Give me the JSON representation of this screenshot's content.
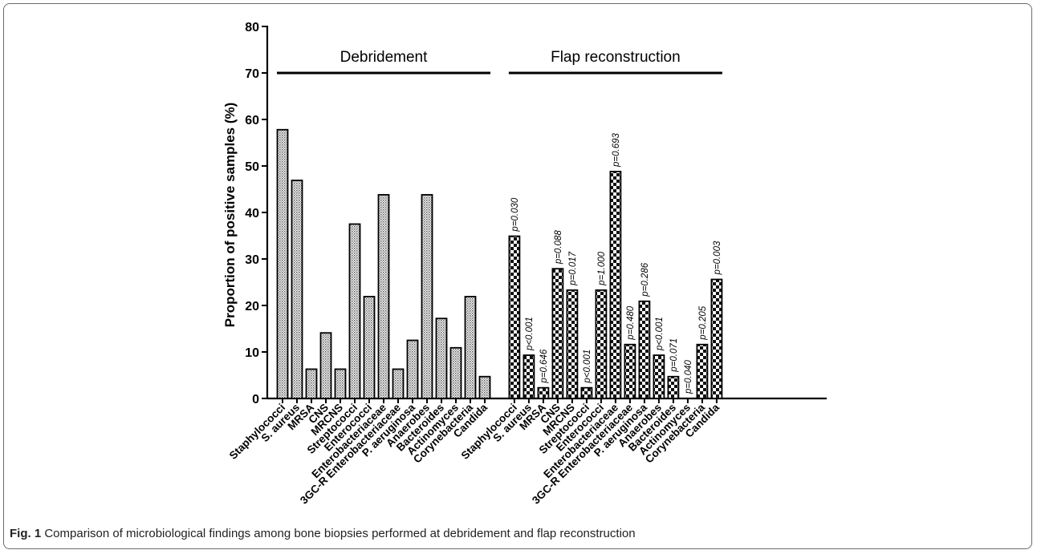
{
  "chart_data": {
    "type": "bar",
    "title": "",
    "xlabel": "",
    "ylabel": "Proportion of positive samples (%)",
    "ylim": [
      0,
      80
    ],
    "yticks": [
      0,
      10,
      20,
      30,
      40,
      50,
      60,
      70,
      80
    ],
    "grid": false,
    "groups": [
      {
        "name": "Debridement",
        "pattern": "fine-crosshatch",
        "categories": [
          "Staphylococci",
          "S. aureus",
          "MRSA",
          "CNS",
          "MRCNS",
          "Streptococci",
          "Enterococci",
          "Enterobacteriaceae",
          "3GC-R Enterobacteriaceae",
          "P. aeruginosa",
          "Anaerobes",
          "Bacteroides",
          "Actinomyces",
          "Corynebacteria",
          "Candida"
        ],
        "values": [
          57.8,
          46.9,
          6.3,
          14.1,
          6.3,
          37.5,
          21.9,
          43.8,
          6.3,
          12.5,
          43.8,
          17.2,
          10.9,
          21.9,
          4.7
        ],
        "annotations": [
          "",
          "",
          "",
          "",
          "",
          "",
          "",
          "",
          "",
          "",
          "",
          "",
          "",
          "",
          ""
        ]
      },
      {
        "name": "Flap reconstruction",
        "pattern": "checkerboard",
        "categories": [
          "Staphylococci",
          "S. aureus",
          "MRSA",
          "CNS",
          "MRCNS",
          "Streptococci",
          "Enterococci",
          "Enterobacteriaceae",
          "3GC-R Enterobacteriaceae",
          "P. aeruginosa",
          "Anaerobes",
          "Bacteroides",
          "Actinomyces",
          "Corynebacteria",
          "Candida"
        ],
        "values": [
          34.9,
          9.3,
          2.3,
          27.9,
          23.3,
          2.3,
          23.3,
          48.8,
          11.6,
          20.9,
          9.3,
          4.7,
          0,
          11.6,
          25.6
        ],
        "annotations": [
          "p=0.030",
          "p<0.001",
          "p=0.646",
          "p=0.088",
          "p=0.017",
          "p<0.001",
          "p=1.000",
          "p=0.693",
          "p=0.480",
          "p=0.286",
          "p<0.001",
          "p=0.071",
          "p=0.040",
          "p=0.205",
          "p=0.003"
        ]
      }
    ],
    "line_level": 70
  },
  "caption": {
    "label": "Fig. 1",
    "text": " Comparison of microbiological findings among bone biopsies performed at debridement and flap reconstruction"
  }
}
